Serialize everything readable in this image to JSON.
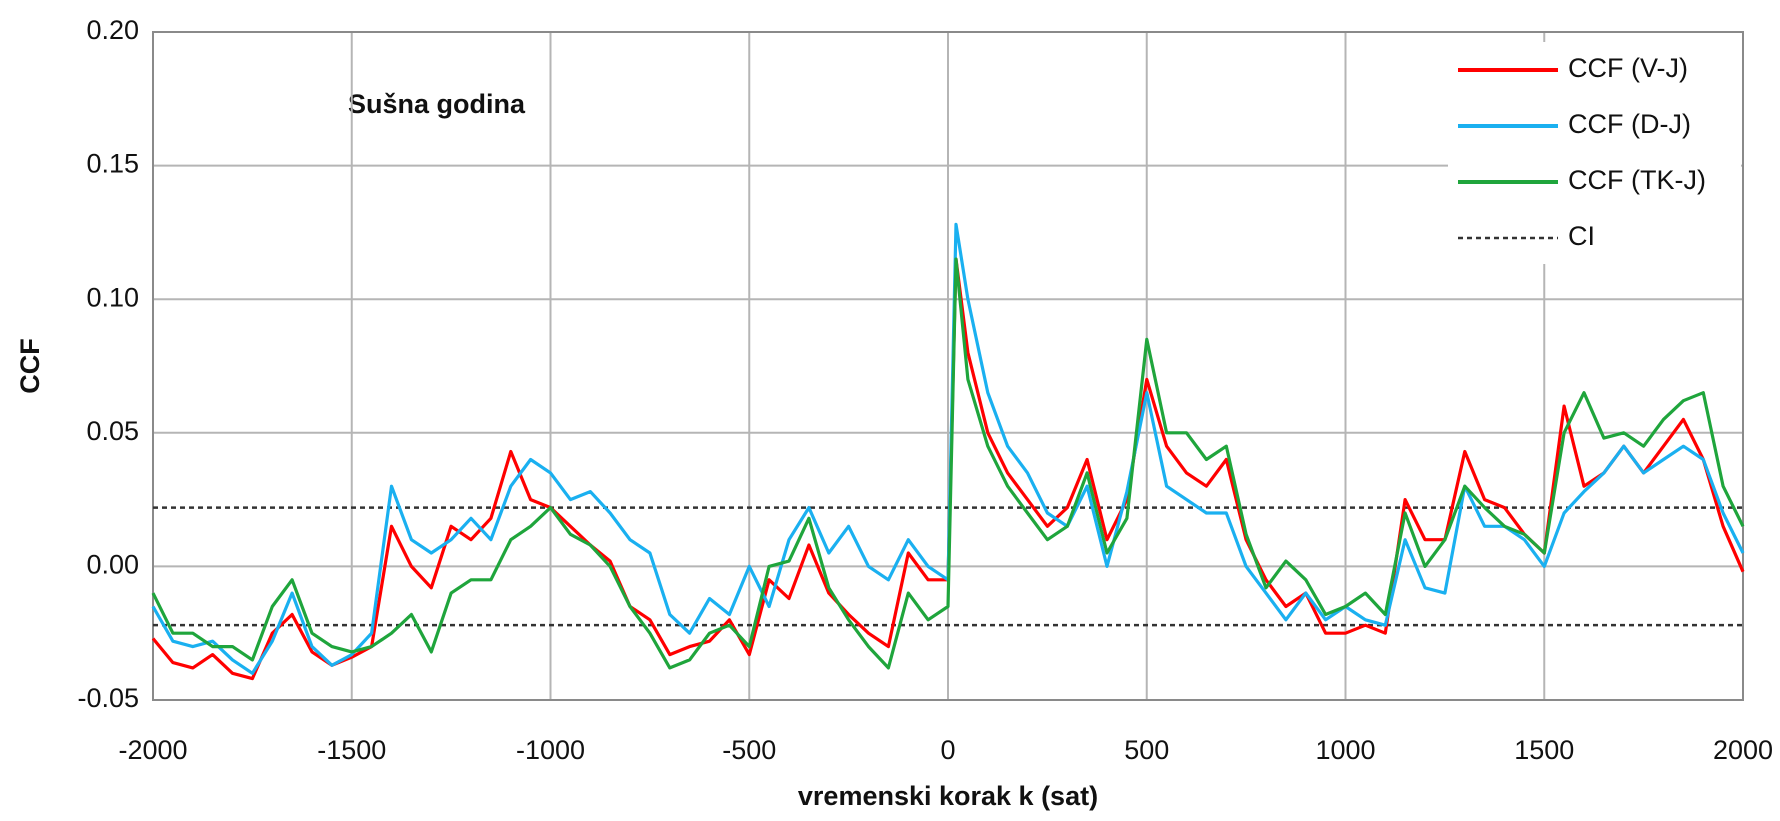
{
  "chart_data": {
    "type": "line",
    "annotation": "Sušna godina",
    "xlabel": "vremenski korak k (sat)",
    "ylabel": "CCF",
    "xlim": [
      -2000,
      2000
    ],
    "ylim": [
      -0.05,
      0.2
    ],
    "xticks": [
      -2000,
      -1500,
      -1000,
      -500,
      0,
      500,
      1000,
      1500,
      2000
    ],
    "yticks": [
      {
        "value": -0.05,
        "label": "-0.05"
      },
      {
        "value": 0,
        "label": "0.00"
      },
      {
        "value": 0.05,
        "label": "0.05"
      },
      {
        "value": 0.1,
        "label": "0.10"
      },
      {
        "value": 0.15,
        "label": "0.15"
      },
      {
        "value": 0.2,
        "label": "0.20"
      }
    ],
    "grid": true,
    "legend": "upper right",
    "x": [
      -2000,
      -1950,
      -1900,
      -1850,
      -1800,
      -1750,
      -1700,
      -1650,
      -1600,
      -1550,
      -1500,
      -1450,
      -1400,
      -1350,
      -1300,
      -1250,
      -1200,
      -1150,
      -1100,
      -1050,
      -1000,
      -950,
      -900,
      -850,
      -800,
      -750,
      -700,
      -650,
      -600,
      -550,
      -500,
      -450,
      -400,
      -350,
      -300,
      -250,
      -200,
      -150,
      -100,
      -50,
      0,
      20,
      50,
      100,
      150,
      200,
      250,
      300,
      350,
      400,
      450,
      500,
      550,
      600,
      650,
      700,
      750,
      800,
      850,
      900,
      950,
      1000,
      1050,
      1100,
      1150,
      1200,
      1250,
      1300,
      1350,
      1400,
      1450,
      1500,
      1550,
      1600,
      1650,
      1700,
      1750,
      1800,
      1850,
      1900,
      1950,
      2000
    ],
    "series": [
      {
        "name": "CCF (V-J)",
        "color": "#ff0000",
        "values": [
          -0.027,
          -0.036,
          -0.038,
          -0.033,
          -0.04,
          -0.042,
          -0.025,
          -0.018,
          -0.032,
          -0.037,
          -0.034,
          -0.03,
          0.015,
          0.0,
          -0.008,
          0.015,
          0.01,
          0.018,
          0.043,
          0.025,
          0.022,
          0.015,
          0.008,
          0.002,
          -0.015,
          -0.02,
          -0.033,
          -0.03,
          -0.028,
          -0.02,
          -0.033,
          -0.005,
          -0.012,
          0.008,
          -0.01,
          -0.018,
          -0.025,
          -0.03,
          0.005,
          -0.005,
          -0.005,
          0.115,
          0.08,
          0.05,
          0.035,
          0.025,
          0.015,
          0.022,
          0.04,
          0.01,
          0.025,
          0.07,
          0.045,
          0.035,
          0.03,
          0.04,
          0.01,
          -0.005,
          -0.015,
          -0.01,
          -0.025,
          -0.025,
          -0.022,
          -0.025,
          0.025,
          0.01,
          0.01,
          0.043,
          0.025,
          0.022,
          0.012,
          0.005,
          0.06,
          0.03,
          0.035,
          0.045,
          0.035,
          0.045,
          0.055,
          0.04,
          0.015,
          -0.002
        ]
      },
      {
        "name": "CCF (D-J)",
        "color": "#1ab0f0",
        "values": [
          -0.015,
          -0.028,
          -0.03,
          -0.028,
          -0.035,
          -0.04,
          -0.028,
          -0.01,
          -0.03,
          -0.037,
          -0.033,
          -0.025,
          0.03,
          0.01,
          0.005,
          0.01,
          0.018,
          0.01,
          0.03,
          0.04,
          0.035,
          0.025,
          0.028,
          0.02,
          0.01,
          0.005,
          -0.018,
          -0.025,
          -0.012,
          -0.018,
          0.0,
          -0.015,
          0.01,
          0.022,
          0.005,
          0.015,
          0.0,
          -0.005,
          0.01,
          0.0,
          -0.005,
          0.128,
          0.1,
          0.065,
          0.045,
          0.035,
          0.02,
          0.015,
          0.03,
          0.0,
          0.028,
          0.065,
          0.03,
          0.025,
          0.02,
          0.02,
          0.0,
          -0.01,
          -0.02,
          -0.01,
          -0.02,
          -0.015,
          -0.02,
          -0.022,
          0.01,
          -0.008,
          -0.01,
          0.03,
          0.015,
          0.015,
          0.01,
          0.0,
          0.02,
          0.028,
          0.035,
          0.045,
          0.035,
          0.04,
          0.045,
          0.04,
          0.02,
          0.005
        ]
      },
      {
        "name": "CCF (TK-J)",
        "color": "#1fa53c",
        "values": [
          -0.01,
          -0.025,
          -0.025,
          -0.03,
          -0.03,
          -0.035,
          -0.015,
          -0.005,
          -0.025,
          -0.03,
          -0.032,
          -0.03,
          -0.025,
          -0.018,
          -0.032,
          -0.01,
          -0.005,
          -0.005,
          0.01,
          0.015,
          0.022,
          0.012,
          0.008,
          0.0,
          -0.015,
          -0.025,
          -0.038,
          -0.035,
          -0.025,
          -0.022,
          -0.03,
          0.0,
          0.002,
          0.018,
          -0.008,
          -0.02,
          -0.03,
          -0.038,
          -0.01,
          -0.02,
          -0.015,
          0.115,
          0.07,
          0.045,
          0.03,
          0.02,
          0.01,
          0.015,
          0.035,
          0.005,
          0.018,
          0.085,
          0.05,
          0.05,
          0.04,
          0.045,
          0.012,
          -0.008,
          0.002,
          -0.005,
          -0.018,
          -0.015,
          -0.01,
          -0.018,
          0.02,
          0.0,
          0.01,
          0.03,
          0.022,
          0.015,
          0.012,
          0.005,
          0.05,
          0.065,
          0.048,
          0.05,
          0.045,
          0.055,
          0.062,
          0.065,
          0.03,
          0.015
        ]
      }
    ],
    "ci": {
      "name": "CI",
      "color": "#333333",
      "values": [
        0.022,
        -0.022
      ]
    }
  }
}
